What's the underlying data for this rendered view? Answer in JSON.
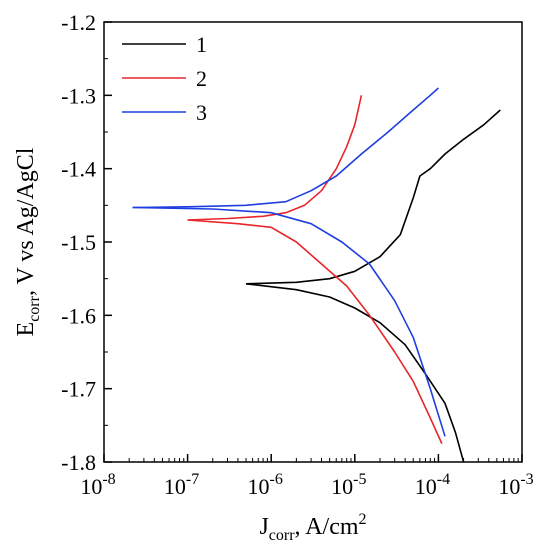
{
  "chart_data": {
    "type": "line",
    "xlabel_main": "J",
    "xlabel_sub": "corr",
    "xlabel_rest": ", A/cm",
    "xlabel_sup": "2",
    "ylabel_main": "E",
    "ylabel_sub": "corr",
    "ylabel_rest": ", V vs Ag/AgCl",
    "x_scale": "log",
    "xlim": [
      1e-08,
      0.001
    ],
    "ylim": [
      -1.8,
      -1.2
    ],
    "x_ticks": [
      {
        "value": 1e-08,
        "base": "10",
        "exp": "-8"
      },
      {
        "value": 1e-07,
        "base": "10",
        "exp": "-7"
      },
      {
        "value": 1e-06,
        "base": "10",
        "exp": "-6"
      },
      {
        "value": 1e-05,
        "base": "10",
        "exp": "-5"
      },
      {
        "value": 0.0001,
        "base": "10",
        "exp": "-4"
      },
      {
        "value": 0.001,
        "base": "10",
        "exp": "-3"
      }
    ],
    "y_ticks": [
      {
        "value": -1.2,
        "label": "-1.2"
      },
      {
        "value": -1.3,
        "label": "-1.3"
      },
      {
        "value": -1.4,
        "label": "-1.4"
      },
      {
        "value": -1.5,
        "label": "-1.5"
      },
      {
        "value": -1.6,
        "label": "-1.6"
      },
      {
        "value": -1.7,
        "label": "-1.7"
      },
      {
        "value": -1.8,
        "label": "-1.8"
      }
    ],
    "grid": false,
    "legend_position": "top-left",
    "series": [
      {
        "name": "1",
        "color": "#000000",
        "anodic": [
          [
            5e-07,
            -1.557
          ],
          [
            2e-06,
            -1.555
          ],
          [
            5e-06,
            -1.55
          ],
          [
            1e-05,
            -1.54
          ],
          [
            2e-05,
            -1.52
          ],
          [
            3.5e-05,
            -1.49
          ],
          [
            5e-05,
            -1.44
          ],
          [
            6e-05,
            -1.41
          ],
          [
            8e-05,
            -1.4
          ],
          [
            0.00012,
            -1.38
          ],
          [
            0.0002,
            -1.36
          ],
          [
            0.00035,
            -1.34
          ],
          [
            0.00055,
            -1.32
          ]
        ],
        "cathodic": [
          [
            5e-07,
            -1.557
          ],
          [
            2e-06,
            -1.565
          ],
          [
            5e-06,
            -1.575
          ],
          [
            1e-05,
            -1.59
          ],
          [
            2e-05,
            -1.61
          ],
          [
            4e-05,
            -1.64
          ],
          [
            7e-05,
            -1.68
          ],
          [
            0.00012,
            -1.72
          ],
          [
            0.00016,
            -1.76
          ],
          [
            0.0002,
            -1.8
          ]
        ]
      },
      {
        "name": "2",
        "color": "#e8262a",
        "anodic": [
          [
            1e-07,
            -1.47
          ],
          [
            3e-07,
            -1.468
          ],
          [
            8e-07,
            -1.465
          ],
          [
            1.5e-06,
            -1.46
          ],
          [
            2.5e-06,
            -1.45
          ],
          [
            4e-06,
            -1.43
          ],
          [
            6e-06,
            -1.4
          ],
          [
            8e-06,
            -1.37
          ],
          [
            1e-05,
            -1.34
          ],
          [
            1.2e-05,
            -1.3
          ]
        ],
        "cathodic": [
          [
            1e-07,
            -1.47
          ],
          [
            4e-07,
            -1.475
          ],
          [
            1e-06,
            -1.48
          ],
          [
            2e-06,
            -1.5
          ],
          [
            4e-06,
            -1.53
          ],
          [
            8e-06,
            -1.56
          ],
          [
            1.5e-05,
            -1.6
          ],
          [
            3e-05,
            -1.65
          ],
          [
            5e-05,
            -1.69
          ],
          [
            8e-05,
            -1.74
          ],
          [
            0.00011,
            -1.775
          ]
        ]
      },
      {
        "name": "3",
        "color": "#1f3ee0",
        "anodic": [
          [
            2.2e-08,
            -1.453
          ],
          [
            1e-07,
            -1.452
          ],
          [
            5e-07,
            -1.45
          ],
          [
            1.5e-06,
            -1.445
          ],
          [
            3e-06,
            -1.43
          ],
          [
            6e-06,
            -1.41
          ],
          [
            1.2e-05,
            -1.38
          ],
          [
            2.5e-05,
            -1.35
          ],
          [
            5e-05,
            -1.32
          ],
          [
            8e-05,
            -1.3
          ],
          [
            0.0001,
            -1.29
          ]
        ],
        "cathodic": [
          [
            2.2e-08,
            -1.453
          ],
          [
            2e-07,
            -1.455
          ],
          [
            1e-06,
            -1.46
          ],
          [
            3e-06,
            -1.475
          ],
          [
            7e-06,
            -1.5
          ],
          [
            1.5e-05,
            -1.53
          ],
          [
            3e-05,
            -1.58
          ],
          [
            5e-05,
            -1.63
          ],
          [
            8e-05,
            -1.7
          ],
          [
            0.00012,
            -1.765
          ]
        ]
      }
    ]
  }
}
